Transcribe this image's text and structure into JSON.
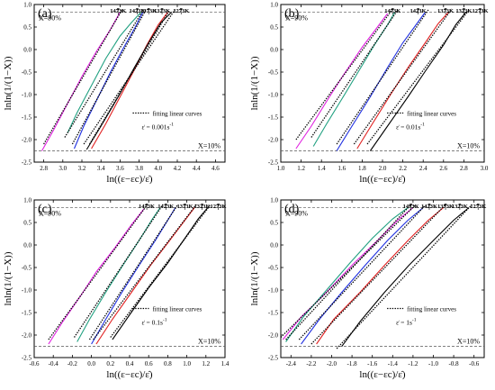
{
  "temps": [
    "1473K",
    "1423K",
    "1373K",
    "1323K",
    "1273K"
  ],
  "colors": {
    "1473K": "#e020e0",
    "1423K": "#20a080",
    "1373K": "#2030e0",
    "1323K": "#e02020",
    "1273K": "#000000"
  },
  "ref_labels": {
    "upper": "X=90%",
    "lower": "X=10%"
  },
  "legend_fit": "fitting linear curves",
  "chart_data": [
    {
      "type": "line",
      "panel": "(a)",
      "rate": "0.001s",
      "rate_exp": "-1",
      "xlabel": "ln((ε−εc)/ε̇)",
      "ylabel": "lnln(1/(1−X))",
      "xlim": [
        2.7,
        4.7
      ],
      "ylim": [
        -2.5,
        1.0
      ],
      "xticks": [
        2.8,
        3.0,
        3.2,
        3.4,
        3.6,
        3.8,
        4.0,
        4.2,
        4.4,
        4.6
      ],
      "yticks": [
        -2.5,
        -2.0,
        -1.5,
        -1.0,
        -0.5,
        0.0,
        0.5,
        1.0
      ],
      "ref_y": [
        0.834,
        -2.25
      ],
      "series": [
        {
          "temp": "1473K",
          "x": [
            2.78,
            2.9,
            3.05,
            3.2,
            3.35,
            3.5,
            3.6
          ],
          "y": [
            -2.25,
            -1.8,
            -1.2,
            -0.6,
            -0.05,
            0.45,
            0.83
          ]
        },
        {
          "temp": "1423K",
          "x": [
            3.05,
            3.15,
            3.3,
            3.45,
            3.6,
            3.72,
            3.82
          ],
          "y": [
            -1.85,
            -1.4,
            -0.8,
            -0.2,
            0.3,
            0.6,
            0.83
          ]
        },
        {
          "temp": "1373K",
          "x": [
            3.12,
            3.22,
            3.36,
            3.5,
            3.64,
            3.76,
            3.84
          ],
          "y": [
            -2.2,
            -1.7,
            -1.1,
            -0.5,
            0.05,
            0.5,
            0.83
          ]
        },
        {
          "temp": "1323K",
          "x": [
            3.3,
            3.45,
            3.6,
            3.75,
            3.88,
            4.0,
            4.1
          ],
          "y": [
            -2.2,
            -1.65,
            -1.05,
            -0.45,
            0.1,
            0.55,
            0.83
          ]
        },
        {
          "temp": "1273K",
          "x": [
            3.25,
            3.4,
            3.58,
            3.75,
            3.9,
            4.03,
            4.14
          ],
          "y": [
            -2.22,
            -1.7,
            -1.05,
            -0.4,
            0.15,
            0.6,
            0.83
          ]
        }
      ],
      "fits": [
        {
          "x": [
            2.8,
            3.62
          ],
          "y": [
            -2.1,
            0.88
          ]
        },
        {
          "x": [
            3.02,
            3.85
          ],
          "y": [
            -1.95,
            0.9
          ]
        },
        {
          "x": [
            3.1,
            3.87
          ],
          "y": [
            -2.1,
            0.88
          ]
        },
        {
          "x": [
            3.28,
            4.12
          ],
          "y": [
            -2.1,
            0.88
          ]
        },
        {
          "x": [
            3.22,
            4.18
          ],
          "y": [
            -2.1,
            0.9
          ]
        }
      ]
    },
    {
      "type": "line",
      "panel": "(b)",
      "rate": "0.01s",
      "rate_exp": "-1",
      "xlabel": "ln((ε−εc)/ε̇)",
      "ylabel": "lnln(1/(1−X))",
      "xlim": [
        1.0,
        3.0
      ],
      "ylim": [
        -2.5,
        1.0
      ],
      "xticks": [
        1.0,
        1.2,
        1.4,
        1.6,
        1.8,
        2.0,
        2.2,
        2.4,
        2.6,
        2.8,
        3.0
      ],
      "yticks": [
        -2.5,
        -2.0,
        -1.5,
        -1.0,
        -0.5,
        0.0,
        0.5,
        1.0
      ],
      "ref_y": [
        0.834,
        -2.25
      ],
      "series": [
        {
          "temp": "1473K",
          "x": [
            1.15,
            1.3,
            1.45,
            1.62,
            1.8,
            1.95,
            2.05
          ],
          "y": [
            -2.2,
            -1.7,
            -1.15,
            -0.55,
            0.05,
            0.5,
            0.8
          ]
        },
        {
          "temp": "1423K",
          "x": [
            1.32,
            1.45,
            1.6,
            1.76,
            1.92,
            2.05,
            2.12
          ],
          "y": [
            -2.15,
            -1.65,
            -1.1,
            -0.5,
            0.1,
            0.55,
            0.83
          ]
        },
        {
          "temp": "1373K",
          "x": [
            1.55,
            1.7,
            1.88,
            2.05,
            2.2,
            2.33,
            2.42
          ],
          "y": [
            -2.25,
            -1.7,
            -1.05,
            -0.4,
            0.15,
            0.55,
            0.83
          ]
        },
        {
          "temp": "1323K",
          "x": [
            1.75,
            1.9,
            2.08,
            2.25,
            2.42,
            2.55,
            2.65
          ],
          "y": [
            -2.2,
            -1.65,
            -1.0,
            -0.4,
            0.15,
            0.58,
            0.83
          ]
        },
        {
          "temp": "1273K",
          "x": [
            1.88,
            2.05,
            2.25,
            2.43,
            2.6,
            2.72,
            2.82
          ],
          "y": [
            -2.25,
            -1.7,
            -1.05,
            -0.45,
            0.1,
            0.55,
            0.83
          ]
        }
      ],
      "fits": [
        {
          "x": [
            1.15,
            2.1
          ],
          "y": [
            -2.0,
            0.9
          ]
        },
        {
          "x": [
            1.3,
            2.15
          ],
          "y": [
            -1.95,
            0.88
          ]
        },
        {
          "x": [
            1.55,
            2.45
          ],
          "y": [
            -2.1,
            0.88
          ]
        },
        {
          "x": [
            1.72,
            2.68
          ],
          "y": [
            -2.1,
            0.9
          ]
        },
        {
          "x": [
            1.85,
            2.85
          ],
          "y": [
            -2.1,
            0.88
          ]
        }
      ]
    },
    {
      "type": "line",
      "panel": "(c)",
      "rate": "0.1s",
      "rate_exp": "-1",
      "xlabel": "ln((ε−εc)/ε̇)",
      "ylabel": "lnln(1/(1−X))",
      "xlim": [
        -0.6,
        1.4
      ],
      "ylim": [
        -2.5,
        1.0
      ],
      "xticks": [
        -0.6,
        -0.4,
        -0.2,
        0.0,
        0.2,
        0.4,
        0.6,
        0.8,
        1.0,
        1.2,
        1.4
      ],
      "yticks": [
        -2.5,
        -2.0,
        -1.5,
        -1.0,
        -0.5,
        0.0,
        0.5,
        1.0
      ],
      "ref_y": [
        0.834,
        -2.25
      ],
      "series": [
        {
          "temp": "1473K",
          "x": [
            -0.45,
            -0.3,
            -0.12,
            0.05,
            0.25,
            0.42,
            0.55
          ],
          "y": [
            -2.2,
            -1.7,
            -1.15,
            -0.6,
            -0.05,
            0.45,
            0.8
          ]
        },
        {
          "temp": "1423K",
          "x": [
            -0.15,
            -0.02,
            0.15,
            0.33,
            0.5,
            0.63,
            0.72
          ],
          "y": [
            -2.15,
            -1.65,
            -1.05,
            -0.45,
            0.1,
            0.55,
            0.83
          ]
        },
        {
          "temp": "1373K",
          "x": [
            0.0,
            0.15,
            0.32,
            0.5,
            0.67,
            0.8,
            0.88
          ],
          "y": [
            -2.2,
            -1.65,
            -1.05,
            -0.45,
            0.1,
            0.55,
            0.83
          ]
        },
        {
          "temp": "1323K",
          "x": [
            0.05,
            0.22,
            0.42,
            0.62,
            0.82,
            0.98,
            1.08
          ],
          "y": [
            -2.2,
            -1.65,
            -1.05,
            -0.45,
            0.1,
            0.55,
            0.83
          ]
        },
        {
          "temp": "1273K",
          "x": [
            0.22,
            0.4,
            0.6,
            0.8,
            0.98,
            1.12,
            1.22
          ],
          "y": [
            -2.1,
            -1.55,
            -0.95,
            -0.4,
            0.15,
            0.58,
            0.83
          ]
        }
      ],
      "fits": [
        {
          "x": [
            -0.45,
            0.58
          ],
          "y": [
            -2.1,
            0.88
          ]
        },
        {
          "x": [
            -0.18,
            0.75
          ],
          "y": [
            -2.05,
            0.9
          ]
        },
        {
          "x": [
            -0.02,
            0.9
          ],
          "y": [
            -2.1,
            0.88
          ]
        },
        {
          "x": [
            0.02,
            1.1
          ],
          "y": [
            -2.1,
            0.9
          ]
        },
        {
          "x": [
            0.2,
            1.25
          ],
          "y": [
            -2.05,
            0.9
          ]
        }
      ]
    },
    {
      "type": "line",
      "panel": "(d)",
      "rate": "1s",
      "rate_exp": "-1",
      "xlabel": "ln((ε−εc)/ε̇)",
      "ylabel": "lnln(1/(1−X))",
      "xlim": [
        -2.5,
        -0.5
      ],
      "ylim": [
        -2.5,
        1.0
      ],
      "xticks": [
        -2.4,
        -2.2,
        -2.0,
        -1.8,
        -1.6,
        -1.4,
        -1.2,
        -1.0,
        -0.8,
        -0.6
      ],
      "yticks": [
        -2.5,
        -2.0,
        -1.5,
        -1.0,
        -0.5,
        0.0,
        0.5,
        1.0
      ],
      "ref_y": [
        0.834,
        -2.25
      ],
      "series": [
        {
          "temp": "1473K",
          "x": [
            -2.48,
            -2.3,
            -2.05,
            -1.8,
            -1.55,
            -1.35,
            -1.2
          ],
          "y": [
            -2.1,
            -1.6,
            -1.05,
            -0.45,
            0.1,
            0.55,
            0.83
          ]
        },
        {
          "temp": "1423K",
          "x": [
            -2.45,
            -2.28,
            -2.05,
            -1.82,
            -1.6,
            -1.4,
            -1.25
          ],
          "y": [
            -2.15,
            -1.6,
            -1.0,
            -0.4,
            0.15,
            0.58,
            0.83
          ]
        },
        {
          "temp": "1373K",
          "x": [
            -2.3,
            -2.12,
            -1.9,
            -1.67,
            -1.45,
            -1.25,
            -1.1
          ],
          "y": [
            -2.2,
            -1.65,
            -1.05,
            -0.45,
            0.1,
            0.55,
            0.83
          ]
        },
        {
          "temp": "1323K",
          "x": [
            -2.15,
            -1.98,
            -1.72,
            -1.48,
            -1.25,
            -1.05,
            -0.9
          ],
          "y": [
            -2.2,
            -1.65,
            -1.05,
            -0.45,
            0.1,
            0.55,
            0.83
          ]
        },
        {
          "temp": "1273K",
          "x": [
            -1.9,
            -1.72,
            -1.48,
            -1.24,
            -1.0,
            -0.8,
            -0.65
          ],
          "y": [
            -2.25,
            -1.7,
            -1.05,
            -0.45,
            0.1,
            0.55,
            0.83
          ]
        }
      ],
      "fits": [
        {
          "x": [
            -2.5,
            -1.18
          ],
          "y": [
            -2.05,
            0.88
          ]
        },
        {
          "x": [
            -2.45,
            -1.22
          ],
          "y": [
            -2.1,
            0.9
          ]
        },
        {
          "x": [
            -2.32,
            -1.08
          ],
          "y": [
            -2.1,
            0.88
          ]
        },
        {
          "x": [
            -2.2,
            -0.88
          ],
          "y": [
            -2.2,
            0.9
          ]
        },
        {
          "x": [
            -1.95,
            -0.62
          ],
          "y": [
            -2.3,
            0.9
          ]
        }
      ]
    }
  ]
}
